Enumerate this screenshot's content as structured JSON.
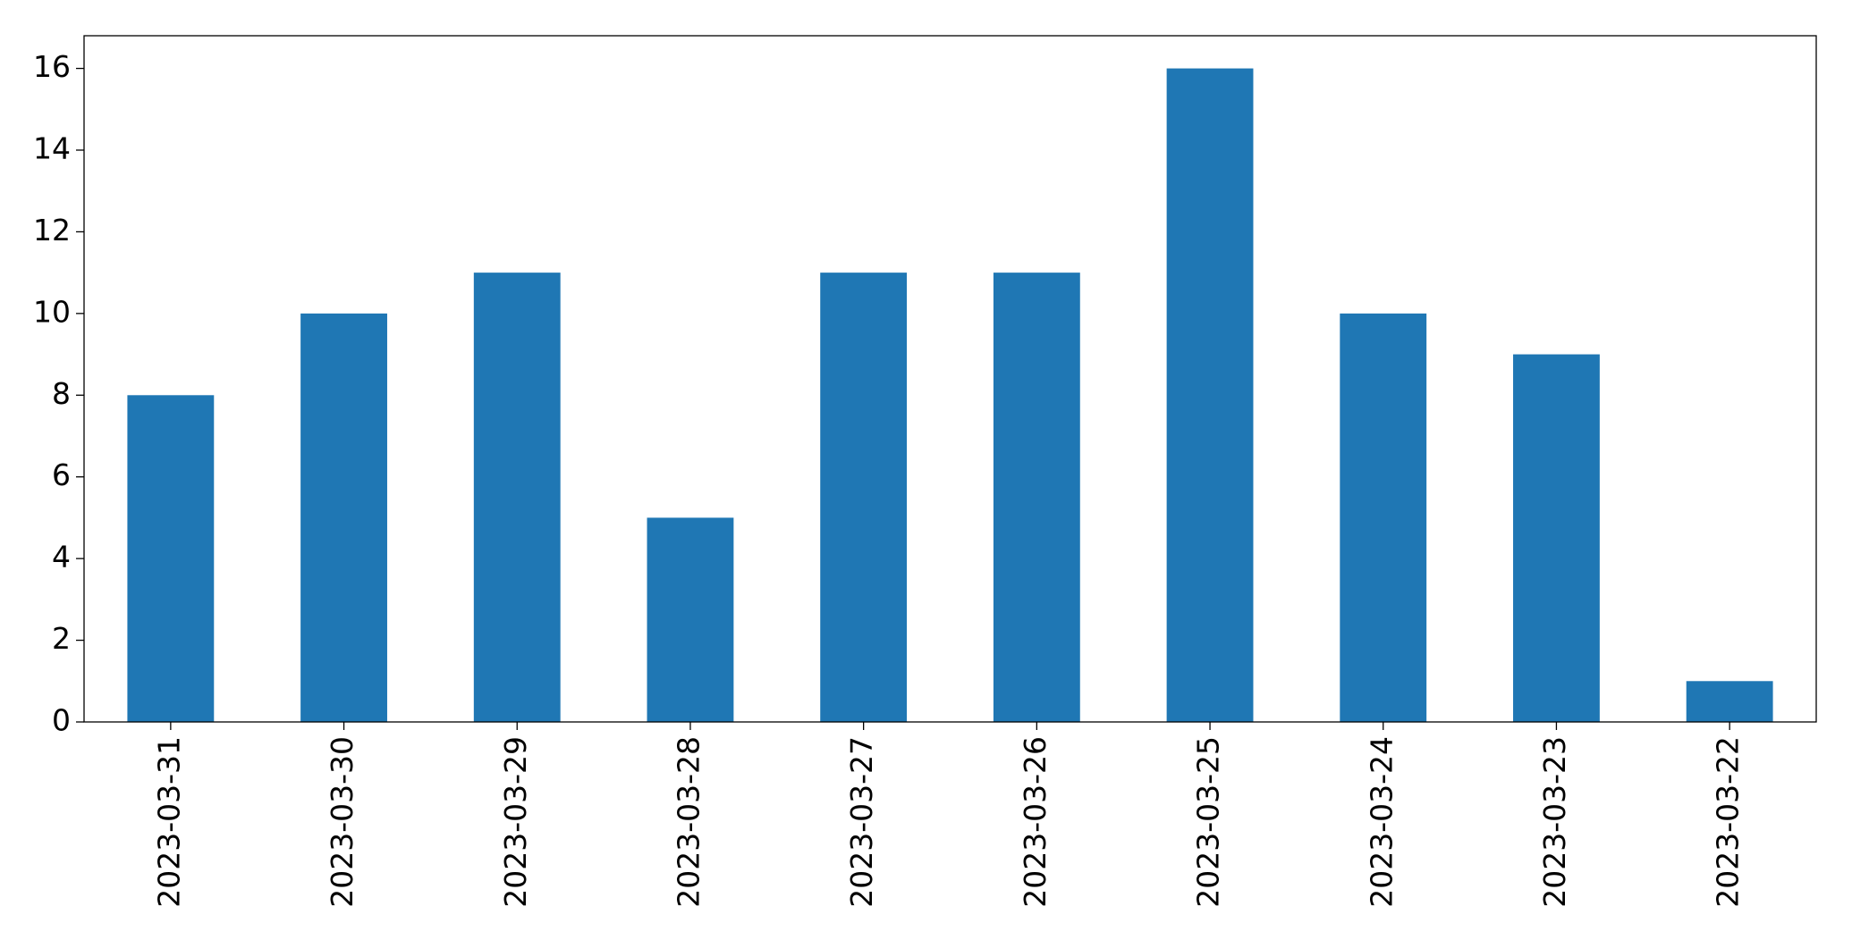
{
  "chart_data": {
    "type": "bar",
    "categories": [
      "2023-03-31",
      "2023-03-30",
      "2023-03-29",
      "2023-03-28",
      "2023-03-27",
      "2023-03-26",
      "2023-03-25",
      "2023-03-24",
      "2023-03-23",
      "2023-03-22"
    ],
    "values": [
      8,
      10,
      11,
      5,
      11,
      11,
      16,
      10,
      9,
      1
    ],
    "color": "#1f77b4",
    "ylim": [
      0,
      16.8
    ],
    "yticks": [
      0,
      2,
      4,
      6,
      8,
      10,
      12,
      14,
      16
    ],
    "grid": false
  }
}
